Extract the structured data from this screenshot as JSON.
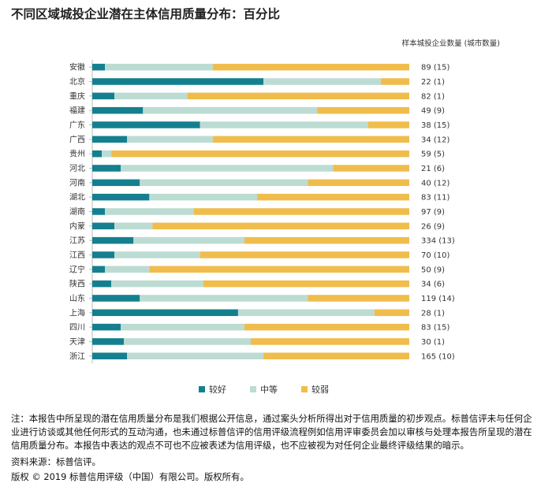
{
  "title": "不同区域城投企业潜在主体信用质量分布：百分比",
  "column_header": "样本城投企业数量 (城市数量)",
  "colors": {
    "good": "#14808f",
    "medium": "#bcdcd3",
    "weak": "#f0bd4c"
  },
  "chart_data": {
    "type": "bar",
    "orientation": "horizontal",
    "stacked": true,
    "percent": true,
    "xlim": [
      0,
      100
    ],
    "categories": [
      "安徽",
      "北京",
      "重庆",
      "福建",
      "广东",
      "广西",
      "贵州",
      "河北",
      "河南",
      "湖北",
      "湖南",
      "内蒙",
      "江苏",
      "江西",
      "辽宁",
      "陕西",
      "山东",
      "上海",
      "四川",
      "天津",
      "浙江"
    ],
    "series": [
      {
        "name": "较好",
        "values": [
          4,
          54,
          7,
          16,
          34,
          11,
          3,
          9,
          15,
          18,
          4,
          7,
          13,
          7,
          4,
          6,
          15,
          46,
          9,
          10,
          11
        ]
      },
      {
        "name": "中等",
        "values": [
          34,
          37,
          23,
          55,
          53,
          27,
          3,
          67,
          53,
          34,
          28,
          12,
          35,
          27,
          14,
          29,
          53,
          43,
          39,
          40,
          43
        ]
      },
      {
        "name": "较弱",
        "values": [
          62,
          9,
          70,
          29,
          13,
          62,
          94,
          24,
          32,
          48,
          68,
          81,
          52,
          66,
          82,
          65,
          32,
          11,
          52,
          50,
          46
        ]
      }
    ],
    "sample_labels": [
      "89 (15)",
      "22 (1)",
      "82 (1)",
      "49 (9)",
      "38 (15)",
      "34 (12)",
      "59 (5)",
      "21 (6)",
      "40 (12)",
      "83 (11)",
      "97 (9)",
      "26 (9)",
      "334 (13)",
      "70 (10)",
      "50 (9)",
      "34 (6)",
      "119 (14)",
      "28 (1)",
      "83 (15)",
      "30 (1)",
      "165 (10)"
    ],
    "legend": [
      "较好",
      "中等",
      "较弱"
    ]
  },
  "notes": {
    "disclaimer": "注：本报告中所呈现的潜在信用质量分布是我们根据公开信息，通过案头分析所得出对于信用质量的初步观点。标普信评未与任何企业进行访谈或其他任何形式的互动沟通，也未通过标普信评的信用评级流程例如信用评审委员会加以审核与处理本报告所呈现的潜在信用质量分布。本报告中表达的观点不可也不应被表述为信用评级，也不应被视为对任何企业最终评级结果的暗示。",
    "source": "资料来源：标普信评。",
    "copyright": "版权 © 2019 标普信用评级（中国）有限公司。版权所有。"
  }
}
